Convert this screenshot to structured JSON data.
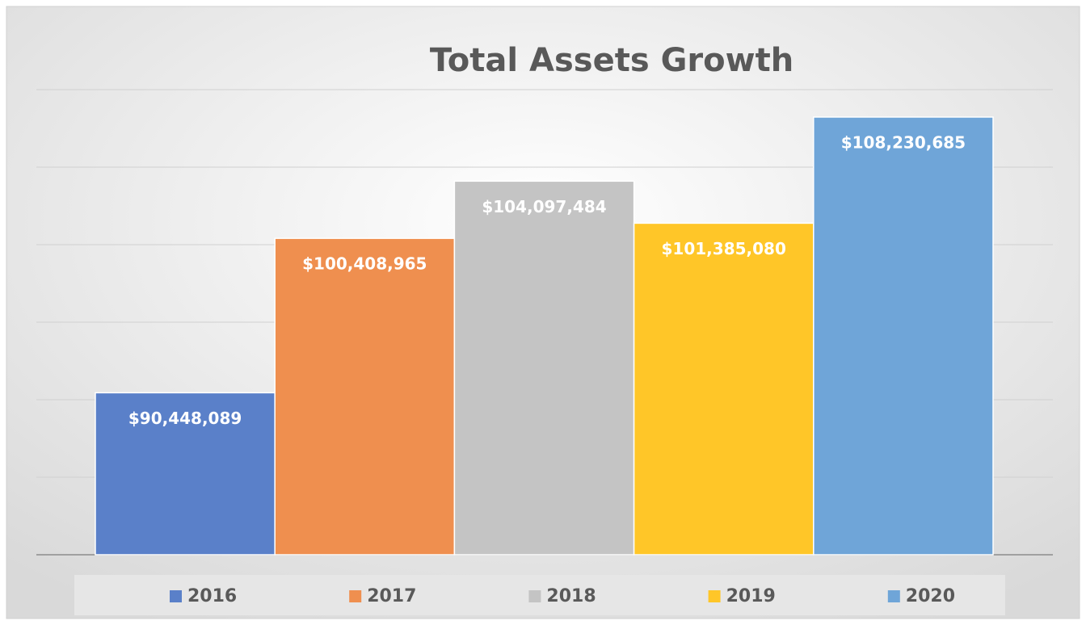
{
  "chart_data": {
    "type": "bar",
    "title": "Total Assets Growth",
    "categories": [
      "2016",
      "2017",
      "2018",
      "2019",
      "2020"
    ],
    "values": [
      90448089,
      100408965,
      104097484,
      101385080,
      108230685
    ],
    "value_labels": [
      "$90,448,089",
      "$100,408,965",
      "$104,097,484",
      "$101,385,080",
      "$108,230,685"
    ],
    "colors": [
      "#5a80c9",
      "#ef8f4f",
      "#c4c4c4",
      "#ffc628",
      "#6fa5d8"
    ],
    "ylim": [
      80000000,
      110000000
    ],
    "yticks": [
      80000000,
      85000000,
      90000000,
      95000000,
      100000000,
      105000000,
      110000000
    ],
    "grid": true
  }
}
